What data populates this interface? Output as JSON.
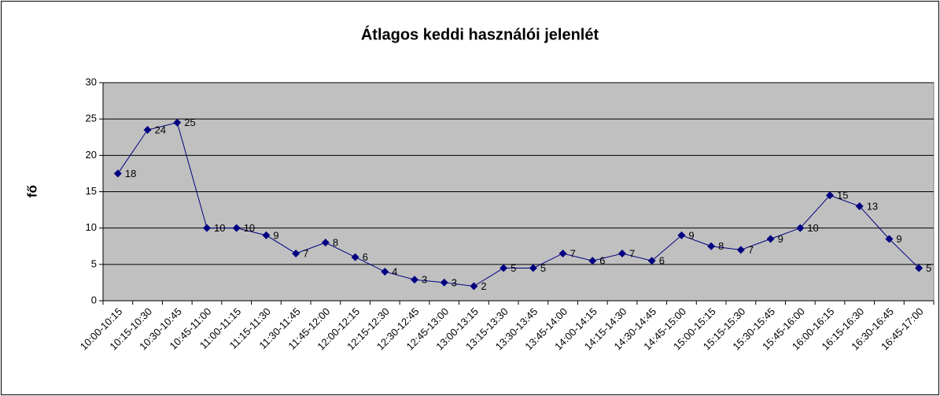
{
  "chart_data": {
    "type": "line",
    "title": "Átlagos keddi használói jelenlét",
    "y_label": "fő",
    "categories": [
      "10:00-10:15",
      "10:15-10:30",
      "10:30-10:45",
      "10:45-11:00",
      "11:00-11:15",
      "11:15-11:30",
      "11:30-11:45",
      "11:45-12:00",
      "12:00-12:15",
      "12:15-12:30",
      "12:30-12:45",
      "12:45-13:00",
      "13:00-13:15",
      "13:15-13:30",
      "13:30-13:45",
      "13:45-14:00",
      "14:00-14:15",
      "14:15-14:30",
      "14:30-14:45",
      "14:45-15:00",
      "15:00-15:15",
      "15:15-15:30",
      "15:30-15:45",
      "15:45-16:00",
      "16:00-16:15",
      "16:15-16:30",
      "16:30-16:45",
      "16:45-17:00"
    ],
    "series": [
      {
        "name": "fő",
        "color": "#000080",
        "values": [
          17.5,
          23.5,
          24.5,
          10,
          10,
          9,
          6.5,
          8,
          6,
          4,
          2.9,
          2.5,
          2,
          4.5,
          4.5,
          6.5,
          5.5,
          6.5,
          5.5,
          9,
          7.5,
          7,
          8.5,
          10,
          14.5,
          13,
          8.5,
          4.5
        ],
        "value_labels": [
          "18",
          "24",
          "25",
          "10",
          "10",
          "9",
          "7",
          "8",
          "6",
          "4",
          "3",
          "3",
          "2",
          "5",
          "5",
          "7",
          "6",
          "7",
          "6",
          "9",
          "8",
          "7",
          "9",
          "10",
          "15",
          "13",
          "9",
          "5"
        ]
      }
    ],
    "ylim": [
      0,
      30
    ],
    "yticks": [
      0,
      5,
      10,
      15,
      20,
      25,
      30
    ],
    "grid": true,
    "plot_background": "#c0c0c0"
  }
}
